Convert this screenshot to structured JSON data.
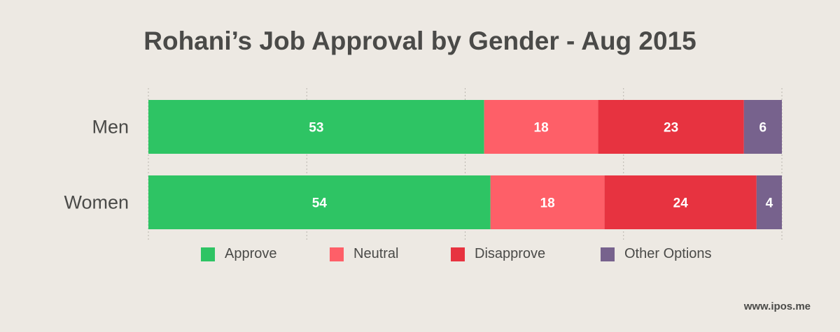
{
  "chart_data": {
    "type": "bar",
    "orientation": "horizontal",
    "stacked": true,
    "title": "Rohani’s Job Approval by Gender - Aug 2015",
    "categories": [
      "Men",
      "Women"
    ],
    "series": [
      {
        "name": "Approve",
        "values": [
          53,
          54
        ],
        "color": "#2ec464"
      },
      {
        "name": "Neutral",
        "values": [
          18,
          18
        ],
        "color": "#fe5f68"
      },
      {
        "name": "Disapprove",
        "values": [
          23,
          24
        ],
        "color": "#e73340"
      },
      {
        "name": "Other Options",
        "values": [
          6,
          4
        ],
        "color": "#77628d"
      }
    ],
    "xlim": [
      0,
      100
    ],
    "grid": true,
    "legend_position": "bottom"
  },
  "footer": {
    "source": "www.ipos.me"
  }
}
